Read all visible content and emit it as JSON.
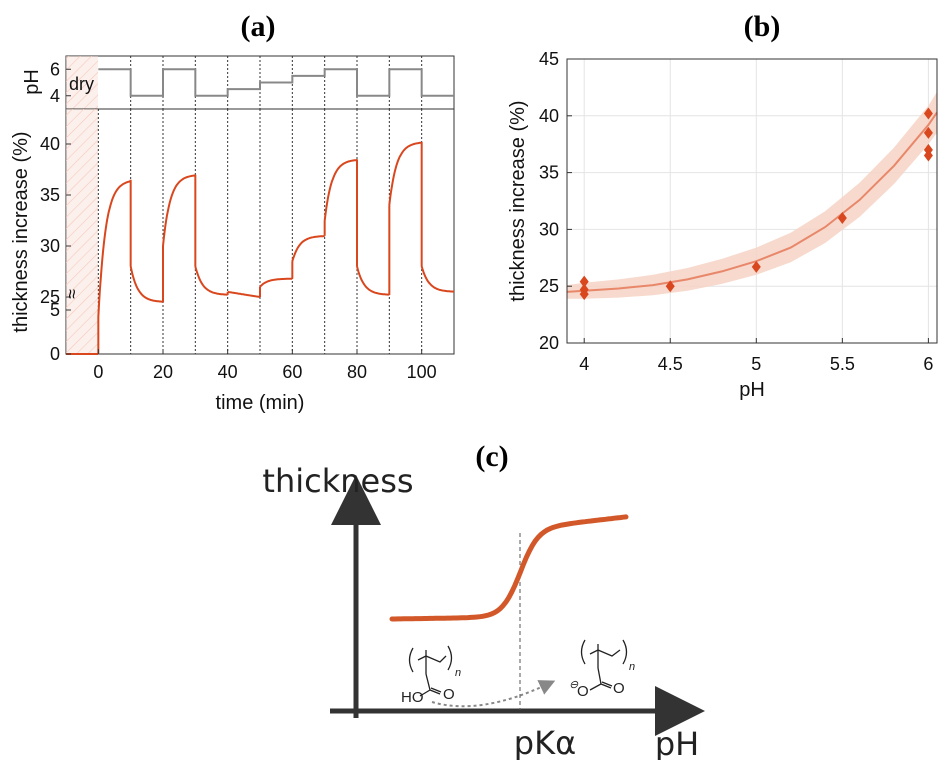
{
  "chart_data": [
    {
      "id": "a",
      "panel_label": "(a)",
      "type": "line",
      "xlabel": "time (min)",
      "xlim": [
        -10,
        110
      ],
      "x_ticks": [
        0,
        20,
        40,
        60,
        80,
        100
      ],
      "top_panel": {
        "ylabel": "pH",
        "ylim": [
          3,
          7
        ],
        "y_ticks": [
          4,
          6
        ],
        "annotation": "dry",
        "ph_steps": [
          {
            "t0": 0,
            "t1": 10,
            "ph": 6
          },
          {
            "t0": 10,
            "t1": 20,
            "ph": 4
          },
          {
            "t0": 20,
            "t1": 30,
            "ph": 6
          },
          {
            "t0": 30,
            "t1": 40,
            "ph": 4
          },
          {
            "t0": 40,
            "t1": 50,
            "ph": 4.5
          },
          {
            "t0": 50,
            "t1": 60,
            "ph": 5
          },
          {
            "t0": 60,
            "t1": 70,
            "ph": 5.5
          },
          {
            "t0": 70,
            "t1": 80,
            "ph": 6
          },
          {
            "t0": 80,
            "t1": 90,
            "ph": 4
          },
          {
            "t0": 90,
            "t1": 100,
            "ph": 6
          },
          {
            "t0": 100,
            "t1": 110,
            "ph": 4
          }
        ]
      },
      "main_panel": {
        "ylabel": "thickness increase (%)",
        "y_ticks": [
          "0",
          "5",
          "25",
          "30",
          "35",
          "40"
        ],
        "axis_break_symbol": "≈",
        "dry_shading": [
          -10,
          0
        ],
        "segment_boundaries": [
          10,
          20,
          30,
          40,
          50,
          60,
          70,
          80,
          90,
          100
        ],
        "thickness_segments": [
          {
            "t0": 0,
            "t1": 10,
            "start": 23,
            "end": 36.5,
            "mode": "swell"
          },
          {
            "t0": 10,
            "t1": 20,
            "start": 28,
            "end": 24.5,
            "mode": "shrink"
          },
          {
            "t0": 20,
            "t1": 30,
            "start": 30,
            "end": 37,
            "mode": "swell"
          },
          {
            "t0": 30,
            "t1": 40,
            "start": 28,
            "end": 25.2,
            "mode": "shrink"
          },
          {
            "t0": 40,
            "t1": 50,
            "start": 25.5,
            "end": 25.0,
            "mode": "flat"
          },
          {
            "t0": 50,
            "t1": 60,
            "start": 26.0,
            "end": 26.8,
            "mode": "swell"
          },
          {
            "t0": 60,
            "t1": 70,
            "start": 28.5,
            "end": 31.0,
            "mode": "swell"
          },
          {
            "t0": 70,
            "t1": 80,
            "start": 32.5,
            "end": 38.5,
            "mode": "swell"
          },
          {
            "t0": 80,
            "t1": 90,
            "start": 28,
            "end": 25.2,
            "mode": "shrink"
          },
          {
            "t0": 90,
            "t1": 100,
            "start": 34,
            "end": 40.2,
            "mode": "swell"
          },
          {
            "t0": 100,
            "t1": 110,
            "start": 28,
            "end": 25.5,
            "mode": "shrink"
          }
        ],
        "colors": {
          "line": "#d9471e",
          "shade": "#f4c2b0",
          "ph_line": "#888888",
          "vline": "#333333"
        }
      }
    },
    {
      "id": "b",
      "panel_label": "(b)",
      "type": "scatter",
      "xlabel": "pH",
      "ylabel": "thickness increase (%)",
      "xlim": [
        3.9,
        6.05
      ],
      "ylim": [
        20,
        45
      ],
      "x_ticks": [
        4,
        4.5,
        5,
        5.5,
        6
      ],
      "x_tick_labels": [
        "4",
        "4.5",
        "5",
        "5.5",
        "6"
      ],
      "y_ticks": [
        20,
        25,
        30,
        35,
        40,
        45
      ],
      "grid": true,
      "points": [
        {
          "x": 4,
          "y": 25.4
        },
        {
          "x": 4,
          "y": 24.7
        },
        {
          "x": 4,
          "y": 24.3
        },
        {
          "x": 4.5,
          "y": 25.0
        },
        {
          "x": 5,
          "y": 26.7
        },
        {
          "x": 5.5,
          "y": 31.0
        },
        {
          "x": 6,
          "y": 40.2
        },
        {
          "x": 6,
          "y": 38.5
        },
        {
          "x": 6,
          "y": 37.0
        },
        {
          "x": 6,
          "y": 36.5
        }
      ],
      "fit_curve": {
        "x": [
          3.9,
          4.0,
          4.2,
          4.4,
          4.6,
          4.8,
          5.0,
          5.2,
          5.4,
          5.6,
          5.8,
          6.0,
          6.05
        ],
        "y": [
          24.5,
          24.6,
          24.8,
          25.1,
          25.6,
          26.3,
          27.2,
          28.4,
          30.2,
          32.6,
          35.6,
          39.2,
          40.3
        ],
        "band_width": 0.6
      },
      "colors": {
        "marker": "#d9471e",
        "fit": "#e8876a",
        "band": "#f6d2c4"
      }
    },
    {
      "id": "c",
      "panel_label": "(c)",
      "type": "line",
      "ylabel": "thickness",
      "xlabel": "pH",
      "marker_label": "pKα",
      "sketch": {
        "curve": "sigmoid",
        "left_species": {
          "text": "HO",
          "subscript": "n"
        },
        "right_species": {
          "text": "O",
          "charge": "⊖",
          "subscript": "n"
        }
      },
      "colors": {
        "curve": "#d2582a",
        "axis": "#333333"
      }
    }
  ]
}
